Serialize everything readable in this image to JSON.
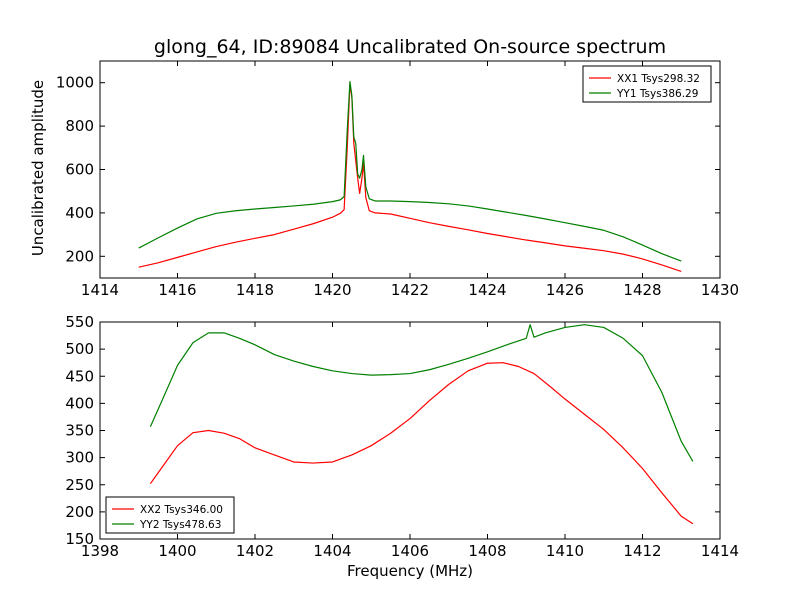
{
  "chart_data": [
    {
      "type": "line",
      "title": "glong_64, ID:89084 Uncalibrated On-source spectrum",
      "xlabel": "",
      "ylabel": "Uncalibrated amplitude",
      "xlim": [
        1414,
        1430
      ],
      "ylim": [
        100,
        1100
      ],
      "xticks": [
        1414,
        1416,
        1418,
        1420,
        1422,
        1424,
        1426,
        1428,
        1430
      ],
      "yticks": [
        200,
        400,
        600,
        800,
        1000
      ],
      "legend_position": "top-right",
      "series": [
        {
          "name": "XX1 Tsys298.32",
          "color": "#ff0000",
          "points": [
            [
              1415.0,
              150
            ],
            [
              1415.5,
              170
            ],
            [
              1416.0,
              195
            ],
            [
              1416.5,
              220
            ],
            [
              1417.0,
              245
            ],
            [
              1417.5,
              265
            ],
            [
              1418.0,
              283
            ],
            [
              1418.5,
              300
            ],
            [
              1419.0,
              325
            ],
            [
              1419.5,
              350
            ],
            [
              1420.0,
              380
            ],
            [
              1420.2,
              398
            ],
            [
              1420.3,
              415
            ],
            [
              1420.38,
              700
            ],
            [
              1420.45,
              995
            ],
            [
              1420.5,
              930
            ],
            [
              1420.55,
              720
            ],
            [
              1420.6,
              640
            ],
            [
              1420.65,
              560
            ],
            [
              1420.7,
              490
            ],
            [
              1420.76,
              560
            ],
            [
              1420.8,
              630
            ],
            [
              1420.86,
              470
            ],
            [
              1420.95,
              410
            ],
            [
              1421.1,
              400
            ],
            [
              1421.5,
              395
            ],
            [
              1422.0,
              375
            ],
            [
              1422.5,
              355
            ],
            [
              1423.0,
              338
            ],
            [
              1423.5,
              322
            ],
            [
              1424.0,
              305
            ],
            [
              1424.5,
              290
            ],
            [
              1425.0,
              275
            ],
            [
              1425.5,
              262
            ],
            [
              1426.0,
              248
            ],
            [
              1426.5,
              237
            ],
            [
              1427.0,
              226
            ],
            [
              1427.5,
              210
            ],
            [
              1428.0,
              188
            ],
            [
              1428.5,
              160
            ],
            [
              1429.0,
              130
            ]
          ]
        },
        {
          "name": "YY1 Tsys386.29",
          "color": "#008000",
          "points": [
            [
              1415.0,
              238
            ],
            [
              1415.5,
              285
            ],
            [
              1416.0,
              330
            ],
            [
              1416.5,
              372
            ],
            [
              1417.0,
              398
            ],
            [
              1417.5,
              410
            ],
            [
              1418.0,
              418
            ],
            [
              1418.5,
              425
            ],
            [
              1419.0,
              432
            ],
            [
              1419.5,
              440
            ],
            [
              1420.0,
              452
            ],
            [
              1420.2,
              460
            ],
            [
              1420.3,
              475
            ],
            [
              1420.38,
              780
            ],
            [
              1420.45,
              1005
            ],
            [
              1420.5,
              940
            ],
            [
              1420.55,
              750
            ],
            [
              1420.6,
              720
            ],
            [
              1420.65,
              580
            ],
            [
              1420.7,
              560
            ],
            [
              1420.76,
              600
            ],
            [
              1420.8,
              665
            ],
            [
              1420.86,
              520
            ],
            [
              1420.95,
              465
            ],
            [
              1421.1,
              455
            ],
            [
              1421.5,
              455
            ],
            [
              1422.0,
              452
            ],
            [
              1422.5,
              448
            ],
            [
              1423.0,
              442
            ],
            [
              1423.5,
              432
            ],
            [
              1424.0,
              418
            ],
            [
              1424.5,
              403
            ],
            [
              1425.0,
              388
            ],
            [
              1425.5,
              372
            ],
            [
              1426.0,
              355
            ],
            [
              1426.5,
              338
            ],
            [
              1427.0,
              320
            ],
            [
              1427.5,
              290
            ],
            [
              1428.0,
              252
            ],
            [
              1428.5,
              212
            ],
            [
              1429.0,
              178
            ]
          ]
        }
      ]
    },
    {
      "type": "line",
      "title": "",
      "xlabel": "Frequency (MHz)",
      "ylabel": "",
      "xlim": [
        1398,
        1414
      ],
      "ylim": [
        150,
        550
      ],
      "xticks": [
        1398,
        1400,
        1402,
        1404,
        1406,
        1408,
        1410,
        1412,
        1414
      ],
      "yticks": [
        150,
        200,
        250,
        300,
        350,
        400,
        450,
        500,
        550
      ],
      "legend_position": "bottom-left",
      "series": [
        {
          "name": "XX2 Tsys346.00",
          "color": "#ff0000",
          "points": [
            [
              1399.3,
              252
            ],
            [
              1399.6,
              282
            ],
            [
              1400.0,
              322
            ],
            [
              1400.4,
              346
            ],
            [
              1400.8,
              350
            ],
            [
              1401.2,
              345
            ],
            [
              1401.6,
              335
            ],
            [
              1402.0,
              318
            ],
            [
              1402.5,
              305
            ],
            [
              1403.0,
              292
            ],
            [
              1403.5,
              290
            ],
            [
              1404.0,
              292
            ],
            [
              1404.5,
              305
            ],
            [
              1405.0,
              322
            ],
            [
              1405.5,
              345
            ],
            [
              1406.0,
              372
            ],
            [
              1406.5,
              405
            ],
            [
              1407.0,
              435
            ],
            [
              1407.5,
              460
            ],
            [
              1408.0,
              474
            ],
            [
              1408.4,
              475
            ],
            [
              1408.8,
              468
            ],
            [
              1409.2,
              455
            ],
            [
              1409.6,
              432
            ],
            [
              1410.0,
              408
            ],
            [
              1410.5,
              380
            ],
            [
              1411.0,
              352
            ],
            [
              1411.5,
              318
            ],
            [
              1412.0,
              280
            ],
            [
              1412.5,
              235
            ],
            [
              1413.0,
              192
            ],
            [
              1413.3,
              178
            ]
          ]
        },
        {
          "name": "YY2 Tsys478.63",
          "color": "#008000",
          "points": [
            [
              1399.3,
              357
            ],
            [
              1399.6,
              405
            ],
            [
              1400.0,
              470
            ],
            [
              1400.4,
              512
            ],
            [
              1400.8,
              530
            ],
            [
              1401.2,
              530
            ],
            [
              1401.6,
              520
            ],
            [
              1402.0,
              508
            ],
            [
              1402.5,
              490
            ],
            [
              1403.0,
              478
            ],
            [
              1403.5,
              468
            ],
            [
              1404.0,
              460
            ],
            [
              1404.5,
              455
            ],
            [
              1405.0,
              452
            ],
            [
              1405.5,
              453
            ],
            [
              1406.0,
              455
            ],
            [
              1406.5,
              462
            ],
            [
              1407.0,
              472
            ],
            [
              1407.5,
              483
            ],
            [
              1408.0,
              495
            ],
            [
              1408.5,
              508
            ],
            [
              1409.0,
              520
            ],
            [
              1409.1,
              545
            ],
            [
              1409.2,
              522
            ],
            [
              1409.5,
              530
            ],
            [
              1410.0,
              540
            ],
            [
              1410.5,
              545
            ],
            [
              1411.0,
              540
            ],
            [
              1411.5,
              520
            ],
            [
              1412.0,
              488
            ],
            [
              1412.5,
              420
            ],
            [
              1413.0,
              330
            ],
            [
              1413.3,
              293
            ]
          ]
        }
      ]
    }
  ]
}
